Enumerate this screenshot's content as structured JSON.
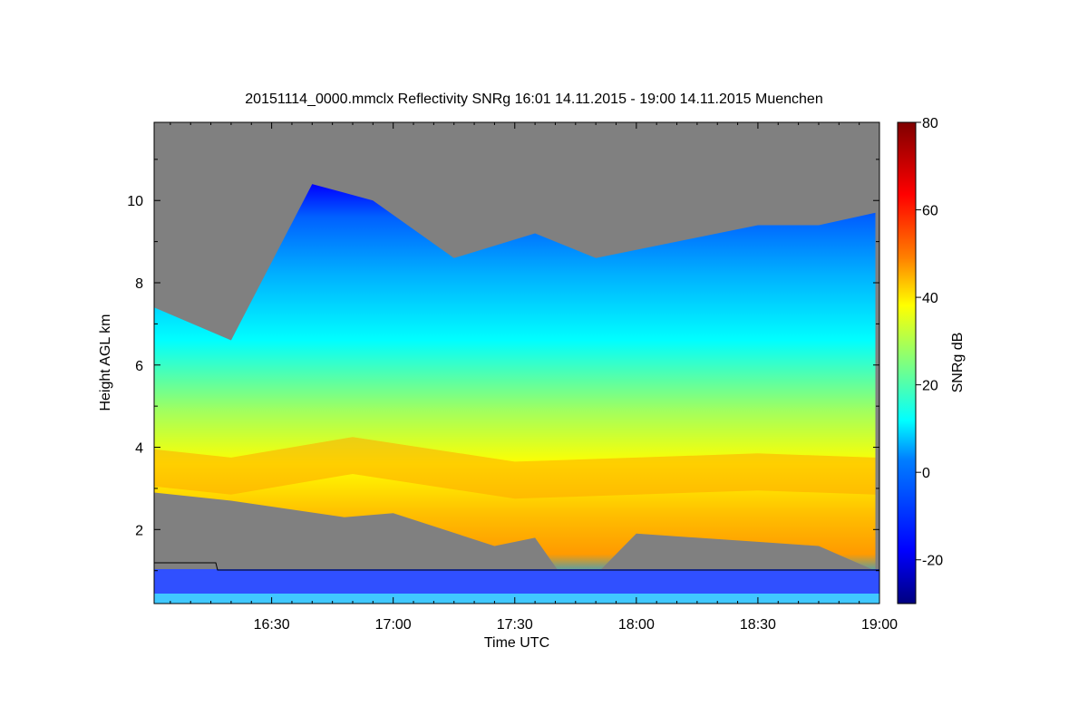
{
  "chart_data": {
    "type": "heatmap",
    "title": "20151114_0000.mmclx Reflectivity SNRg   16:01 14.11.2015 - 19:00 14.11.2015 Muenchen",
    "xlabel": "Time UTC",
    "ylabel": "Height AGL km",
    "xlim": [
      "16:01",
      "19:00"
    ],
    "ylim": [
      0.2,
      11.9
    ],
    "x_ticks": [
      "16:30",
      "17:00",
      "17:30",
      "18:00",
      "18:30",
      "19:00"
    ],
    "y_ticks": [
      "2",
      "4",
      "6",
      "8",
      "10"
    ],
    "colorbar": {
      "label": "SNRg dB",
      "range": [
        -30,
        80
      ],
      "ticks": [
        "-20",
        "0",
        "20",
        "40",
        "60",
        "80"
      ]
    },
    "no_signal_color": "#808080",
    "cloud_layers": [
      {
        "name": "cloud-top",
        "time_min": [
          1,
          20,
          40,
          55,
          75,
          95,
          110,
          130,
          150,
          165,
          179
        ],
        "height_km": [
          7.4,
          6.6,
          10.4,
          10.0,
          8.6,
          9.2,
          8.6,
          9.0,
          9.4,
          9.4,
          9.7
        ]
      },
      {
        "name": "cloud-base",
        "time_min": [
          1,
          20,
          48,
          60,
          85,
          95,
          105,
          120,
          150,
          165,
          179
        ],
        "height_km": [
          2.9,
          2.7,
          2.3,
          2.4,
          1.6,
          1.8,
          0.4,
          1.9,
          1.7,
          1.6,
          1.0
        ]
      },
      {
        "name": "peak-reflectivity-layer",
        "time_min": [
          1,
          20,
          50,
          90,
          120,
          150,
          179
        ],
        "height_km": [
          3.5,
          3.3,
          3.8,
          3.2,
          3.3,
          3.4,
          3.3
        ],
        "snr_db": 40
      }
    ],
    "colormap": [
      "#00007f",
      "#0000ff",
      "#007fff",
      "#00ffff",
      "#7fff7f",
      "#ffff00",
      "#ff7f00",
      "#ff0000",
      "#7f0000"
    ]
  }
}
